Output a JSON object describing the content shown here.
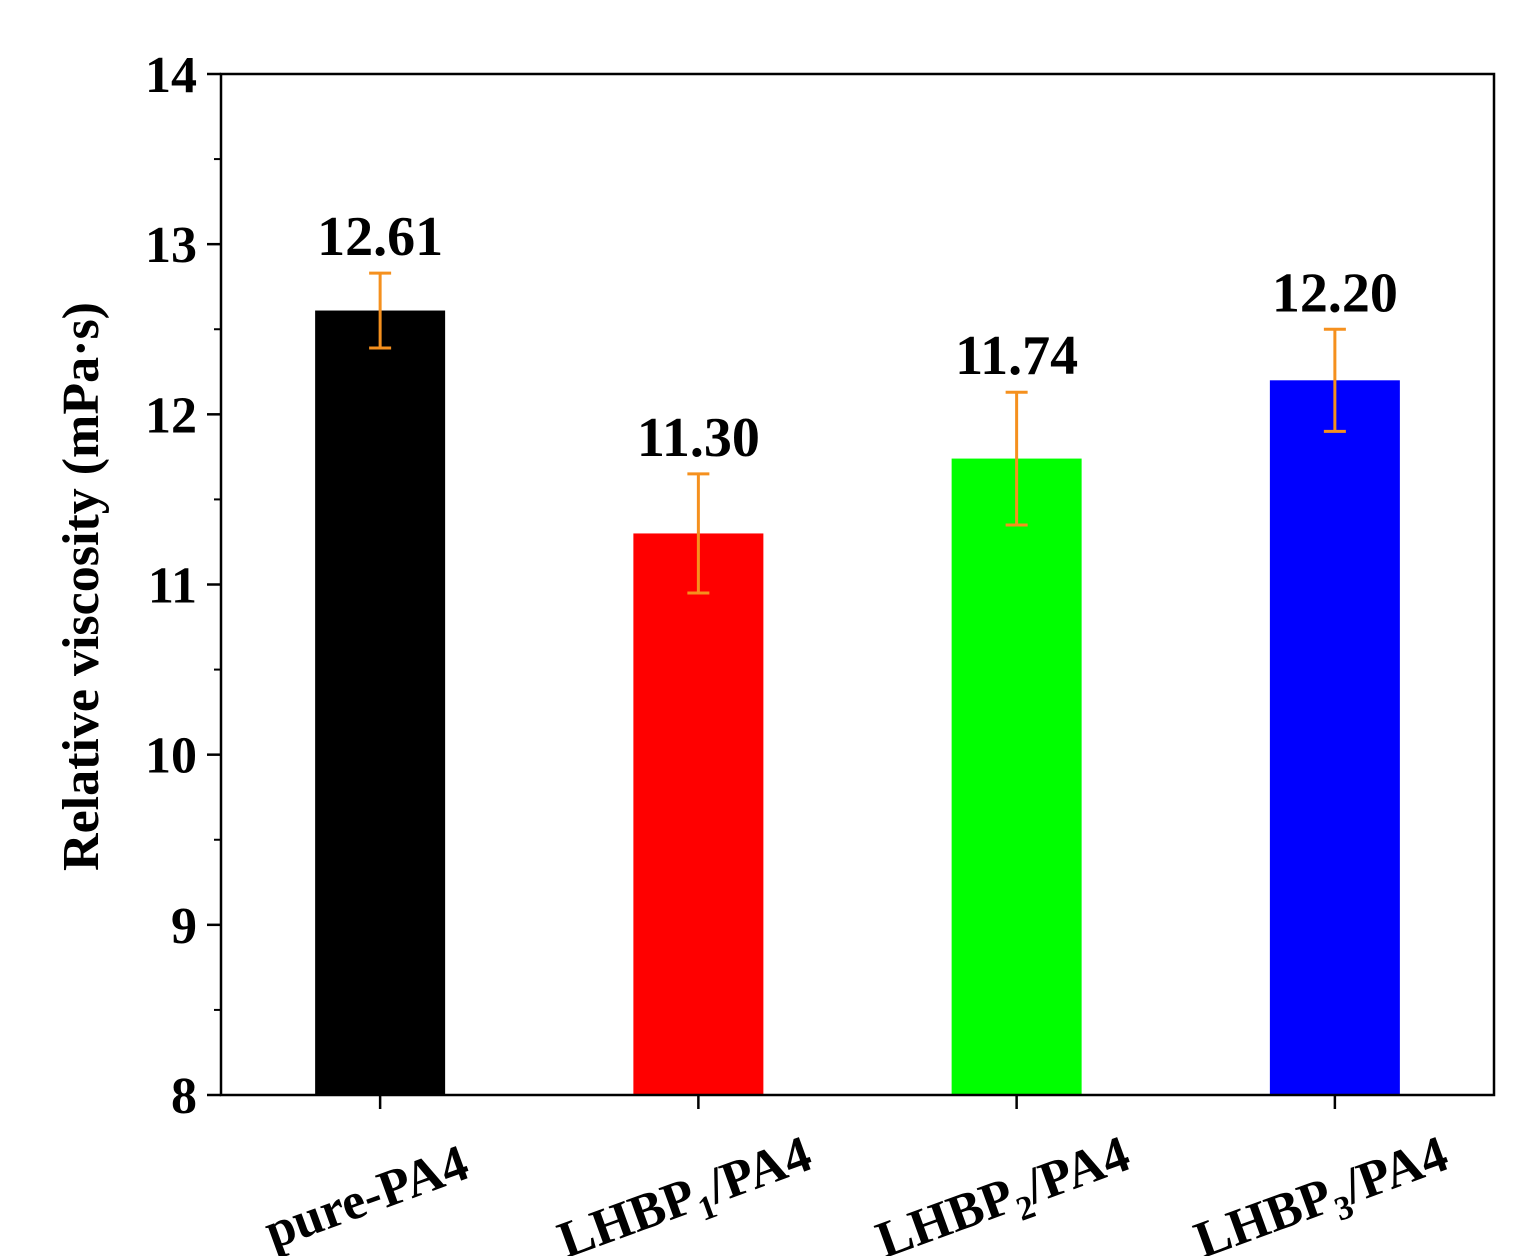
{
  "chart_data": {
    "type": "bar",
    "ylabel": "Relative viscosity (mPa·s)",
    "xlabel": "",
    "ylim": [
      8,
      14
    ],
    "yticks": [
      8,
      9,
      10,
      11,
      12,
      13,
      14
    ],
    "grid": false,
    "categories": [
      {
        "base": "pure-PA4",
        "sub": "",
        "tail": ""
      },
      {
        "base": "LHBP",
        "sub": "1",
        "tail": "/PA4"
      },
      {
        "base": "LHBP",
        "sub": "2",
        "tail": "/PA4"
      },
      {
        "base": "LHBP",
        "sub": "3",
        "tail": "/PA4"
      }
    ],
    "values": [
      12.61,
      11.3,
      11.74,
      12.2
    ],
    "value_labels": [
      "12.61",
      "11.30",
      "11.74",
      "12.20"
    ],
    "errors": [
      0.22,
      0.35,
      0.39,
      0.3
    ],
    "colors": [
      "#000000",
      "#ff0000",
      "#00ff00",
      "#0000ff"
    ],
    "error_color": "#f5901e",
    "axis_color": "#000000"
  }
}
